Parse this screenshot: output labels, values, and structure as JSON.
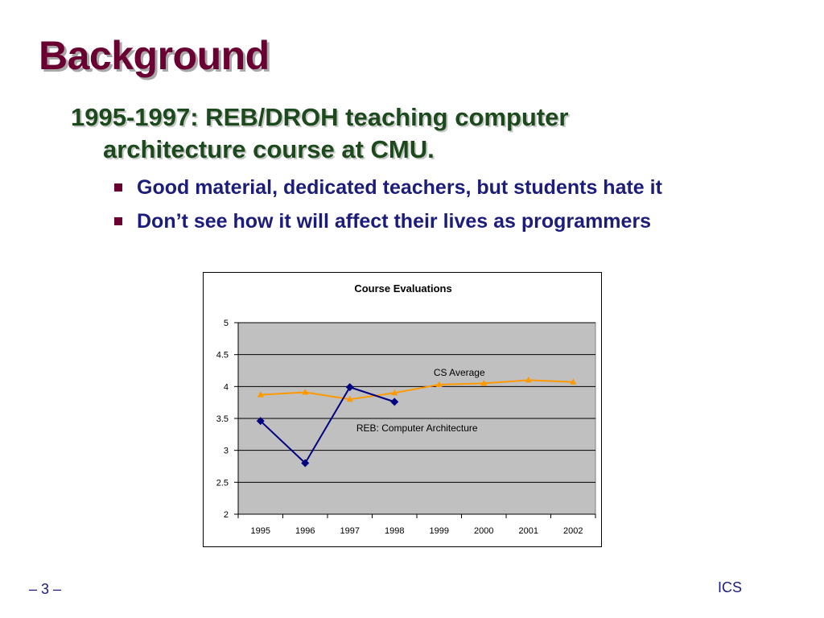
{
  "slide": {
    "title": "Background",
    "main_bullet": "1995-1997: REB/DROH teaching computer architecture course at CMU.",
    "sub_bullets": [
      "Good material, dedicated teachers, but students hate it",
      "Don’t see how it will affect their lives as programmers"
    ]
  },
  "footer": {
    "page": "– 3 –",
    "label": "ICS"
  },
  "colors": {
    "title": "#6a0032",
    "bullet": "#1c4a1c",
    "sub_bullet": "#1c1c7a",
    "plot_area": "#c0c0c0",
    "reb_series": "#000080",
    "cs_series": "#ff9900"
  },
  "chart_data": {
    "type": "line",
    "title": "Course Evaluations",
    "xlabel": "",
    "ylabel": "",
    "x": [
      "1995",
      "1996",
      "1997",
      "1998",
      "1999",
      "2000",
      "2001",
      "2002"
    ],
    "ylim": [
      2,
      5
    ],
    "yticks": [
      "2",
      "2.5",
      "3",
      "3.5",
      "4",
      "4.5",
      "5"
    ],
    "grid": true,
    "legend": "none",
    "series": [
      {
        "name": "CS Average",
        "marker": "triangle",
        "values": [
          3.87,
          3.91,
          3.8,
          3.9,
          4.03,
          4.05,
          4.1,
          4.07
        ]
      },
      {
        "name": "REB: Computer Architecture",
        "marker": "diamond",
        "values": [
          3.46,
          2.8,
          3.99,
          3.76,
          null,
          null,
          null,
          null
        ]
      }
    ]
  }
}
